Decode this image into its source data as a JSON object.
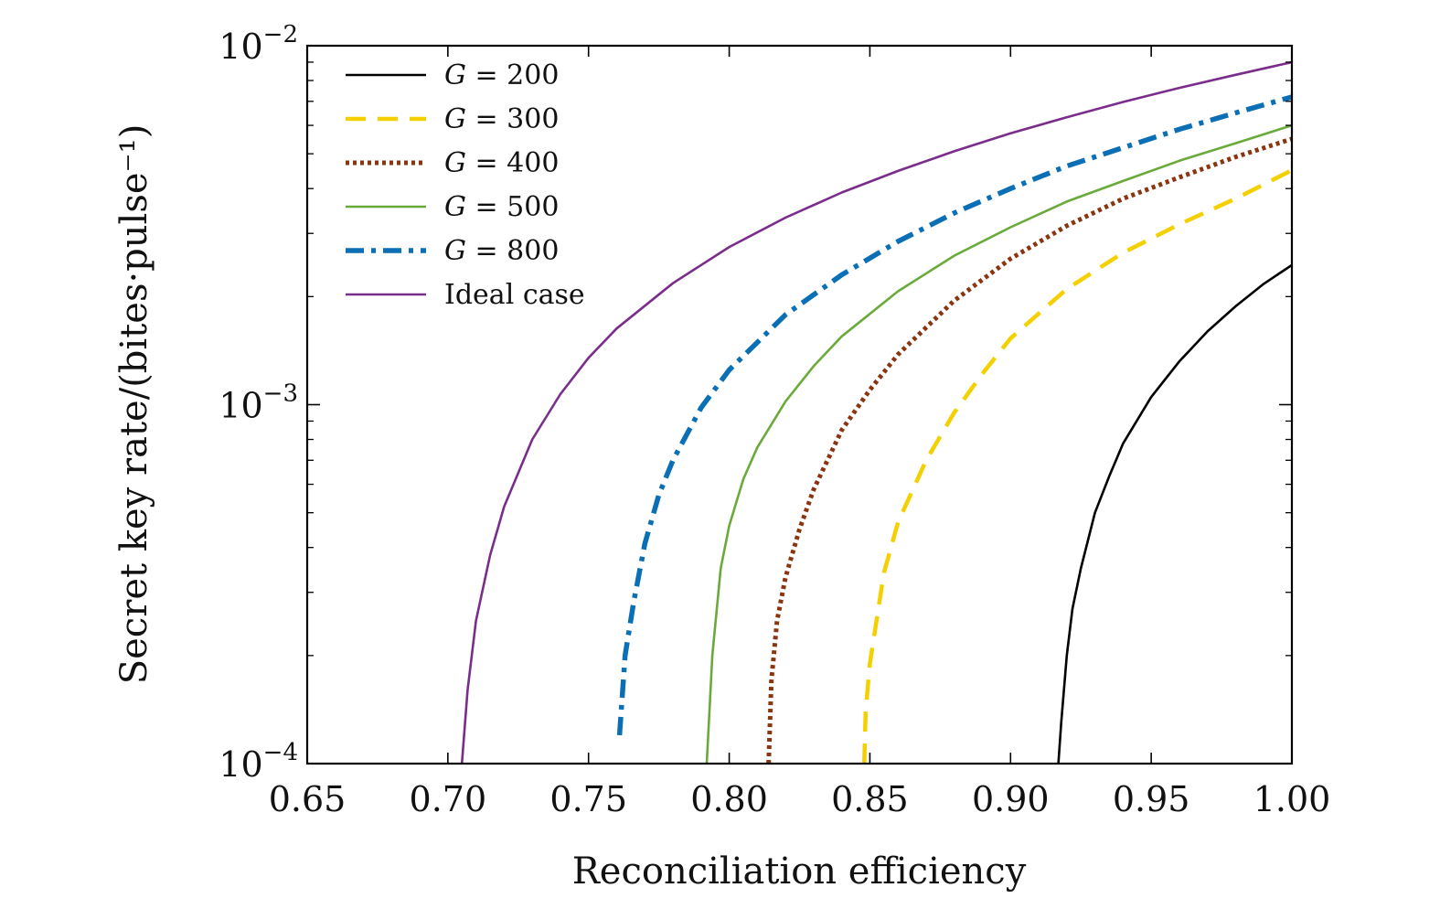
{
  "chart_data": {
    "type": "line",
    "title": "",
    "xlabel": "Reconciliation efficiency",
    "ylabel": "Secret key rate/(bites·pulse⁻¹)",
    "xlim": [
      0.65,
      1.0
    ],
    "ylim": [
      0.0001,
      0.01
    ],
    "yscale": "log",
    "grid": false,
    "legend_position": "top-left",
    "x_ticks": [
      "0.65",
      "0.70",
      "0.75",
      "0.80",
      "0.85",
      "0.90",
      "0.95",
      "1.00"
    ],
    "y_ticks": [
      {
        "base": "10",
        "exp": "−4",
        "value": 0.0001
      },
      {
        "base": "10",
        "exp": "−3",
        "value": 0.001
      },
      {
        "base": "10",
        "exp": "−2",
        "value": 0.01
      }
    ],
    "series": [
      {
        "name": "G = 200",
        "var": "G",
        "rhs": " = 200",
        "color": "#000000",
        "style": "solid",
        "x": [
          0.917,
          0.918,
          0.92,
          0.922,
          0.925,
          0.93,
          0.935,
          0.94,
          0.95,
          0.96,
          0.97,
          0.98,
          0.99,
          1.0
        ],
        "y": [
          0.0001,
          0.00013,
          0.0002,
          0.00027,
          0.00035,
          0.0005,
          0.00063,
          0.00078,
          0.00105,
          0.00132,
          0.0016,
          0.00188,
          0.00217,
          0.00245
        ]
      },
      {
        "name": "G = 300",
        "var": "G",
        "rhs": " = 300",
        "color": "#f5d000",
        "style": "dashed",
        "x": [
          0.848,
          0.8485,
          0.85,
          0.855,
          0.86,
          0.87,
          0.88,
          0.89,
          0.9,
          0.92,
          0.94,
          0.96,
          0.98,
          1.0
        ],
        "y": [
          0.0001,
          0.00014,
          0.00019,
          0.00034,
          0.00047,
          0.0007,
          0.00095,
          0.00122,
          0.00153,
          0.0021,
          0.00265,
          0.00318,
          0.00375,
          0.0045
        ]
      },
      {
        "name": "G = 400",
        "var": "G",
        "rhs": " = 400",
        "color": "#8b3510",
        "style": "dotted",
        "x": [
          0.814,
          0.815,
          0.817,
          0.82,
          0.825,
          0.83,
          0.84,
          0.85,
          0.86,
          0.88,
          0.9,
          0.92,
          0.94,
          0.96,
          0.98,
          1.0
        ],
        "y": [
          0.0001,
          0.00017,
          0.00025,
          0.00033,
          0.00045,
          0.00058,
          0.00085,
          0.0011,
          0.00138,
          0.00195,
          0.00255,
          0.00315,
          0.00375,
          0.0043,
          0.0049,
          0.0055
        ]
      },
      {
        "name": "G = 500",
        "var": "G",
        "rhs": " = 500",
        "color": "#6aaa3a",
        "style": "solid",
        "x": [
          0.792,
          0.794,
          0.797,
          0.8,
          0.805,
          0.81,
          0.82,
          0.83,
          0.84,
          0.86,
          0.88,
          0.9,
          0.92,
          0.94,
          0.96,
          0.98,
          1.0
        ],
        "y": [
          0.0001,
          0.0002,
          0.00035,
          0.00046,
          0.00062,
          0.00076,
          0.00102,
          0.00128,
          0.00155,
          0.00207,
          0.0026,
          0.00312,
          0.00368,
          0.0042,
          0.00478,
          0.00535,
          0.006
        ]
      },
      {
        "name": "G = 800",
        "var": "G",
        "rhs": " = 800",
        "color": "#0a6fb4",
        "style": "dashdot",
        "x": [
          0.761,
          0.763,
          0.766,
          0.77,
          0.775,
          0.78,
          0.79,
          0.8,
          0.82,
          0.84,
          0.86,
          0.88,
          0.9,
          0.92,
          0.94,
          0.96,
          0.98,
          1.0
        ],
        "y": [
          0.00012,
          0.0002,
          0.00028,
          0.00041,
          0.00056,
          0.0007,
          0.00098,
          0.00125,
          0.00178,
          0.0023,
          0.00285,
          0.00342,
          0.004,
          0.00462,
          0.0052,
          0.00585,
          0.0065,
          0.0072
        ]
      },
      {
        "name": "Ideal case",
        "var": "",
        "rhs": "Ideal case",
        "color": "#7b2d8b",
        "style": "solid",
        "x": [
          0.705,
          0.707,
          0.71,
          0.715,
          0.72,
          0.73,
          0.74,
          0.75,
          0.76,
          0.78,
          0.8,
          0.82,
          0.84,
          0.86,
          0.88,
          0.9,
          0.92,
          0.94,
          0.96,
          0.98,
          1.0
        ],
        "y": [
          0.0001,
          0.00016,
          0.00025,
          0.00038,
          0.00052,
          0.0008,
          0.00107,
          0.00135,
          0.00163,
          0.00218,
          0.00275,
          0.00332,
          0.0039,
          0.00448,
          0.00508,
          0.0057,
          0.00632,
          0.00697,
          0.00763,
          0.0083,
          0.009
        ]
      }
    ]
  }
}
